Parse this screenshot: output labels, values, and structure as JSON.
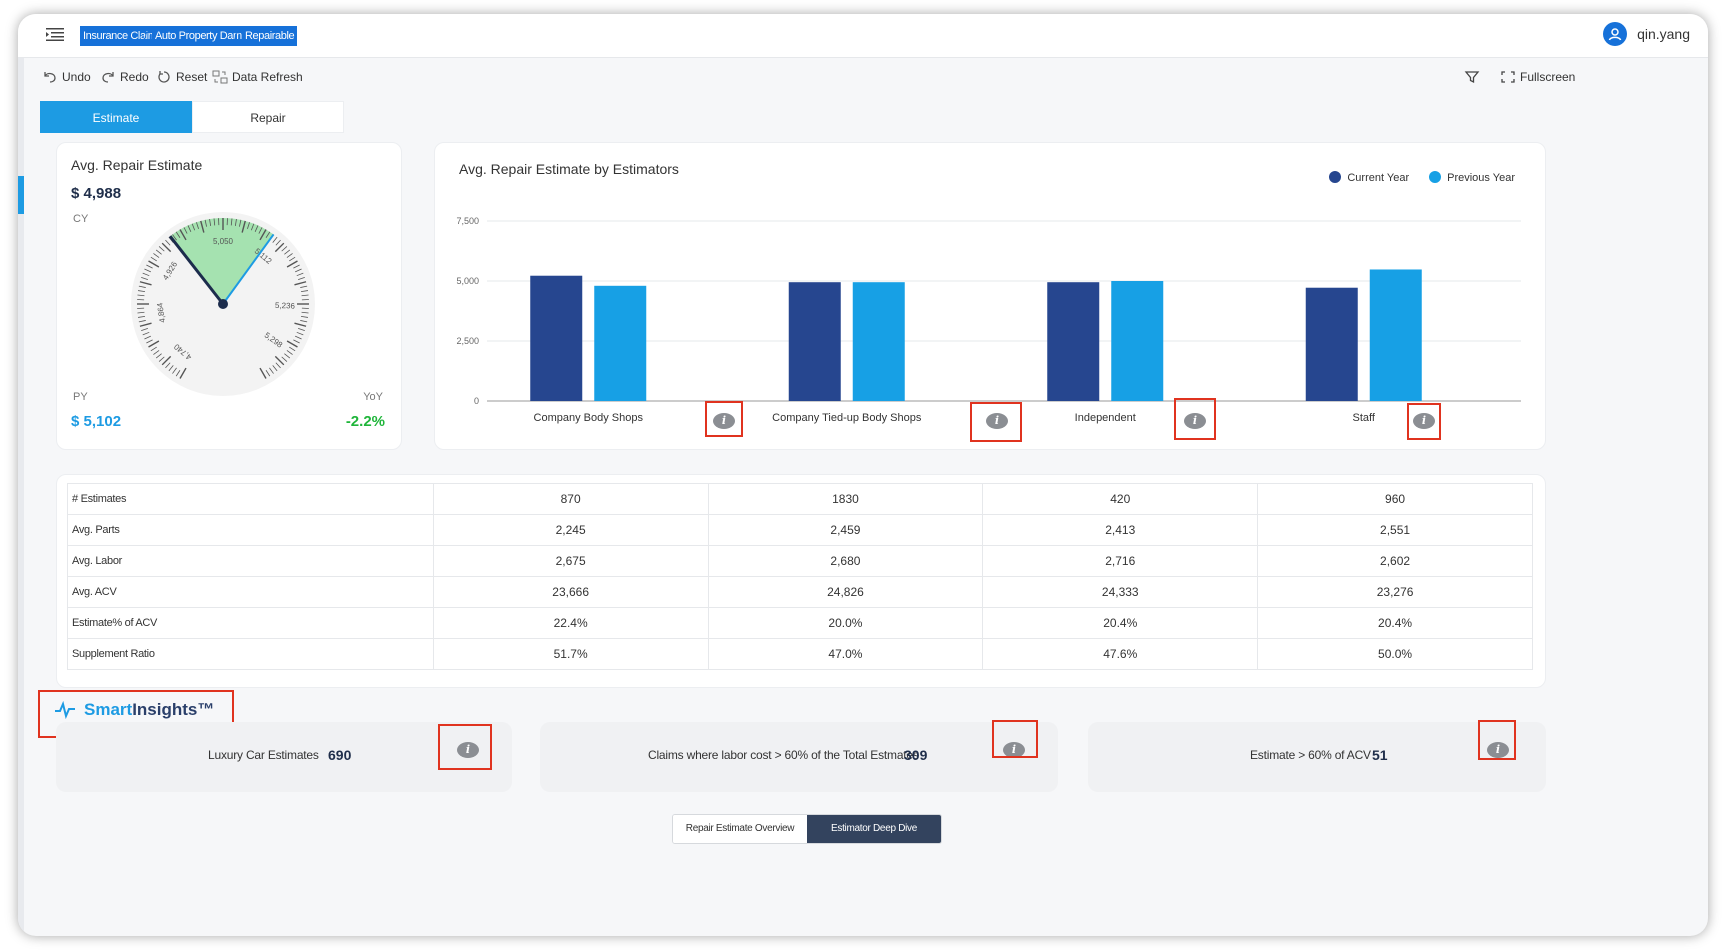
{
  "breadcrumb": [
    "Insurance Claims",
    "Auto Property Damage",
    "Repairable"
  ],
  "user": {
    "name": "qin.yang"
  },
  "toolbar": {
    "undo": "Undo",
    "redo": "Redo",
    "reset": "Reset",
    "refresh": "Data Refresh",
    "fullscreen": "Fullscreen"
  },
  "tabs": {
    "estimate": "Estimate",
    "repair": "Repair"
  },
  "gauge": {
    "title": "Avg. Repair Estimate",
    "cy_value": "$ 4,988",
    "cy_label": "CY",
    "py_label": "PY",
    "py_value": "$ 5,102",
    "yoy_label": "YoY",
    "yoy_value": "-2.2%",
    "tick_labels": [
      "4,740",
      "4,864",
      "4,926",
      "5,050",
      "5,112",
      "5,236",
      "5,298"
    ],
    "colors": {
      "band": "#a5e2b0",
      "cy_needle": "#1c2c4c",
      "py_needle": "#1d9be3"
    }
  },
  "chart_data": {
    "type": "bar",
    "title": "Avg. Repair Estimate by Estimators",
    "categories": [
      "Company Body Shops",
      "Company Tied-up Body Shops",
      "Independent",
      "Staff"
    ],
    "series": [
      {
        "name": "Current Year",
        "color": "#26468f",
        "values": [
          5220,
          4950,
          4950,
          4720
        ]
      },
      {
        "name": "Previous Year",
        "color": "#17a0e5",
        "values": [
          4800,
          4950,
          5000,
          5480
        ]
      }
    ],
    "ylim": [
      0,
      7500
    ],
    "yticks": [
      "0",
      "2,500",
      "5,000",
      "7,500"
    ],
    "grid": true,
    "legend": "top-right"
  },
  "table": {
    "rows": [
      {
        "label": "# Estimates",
        "values": [
          "870",
          "1830",
          "420",
          "960"
        ]
      },
      {
        "label": "Avg. Parts",
        "values": [
          "2,245",
          "2,459",
          "2,413",
          "2,551"
        ]
      },
      {
        "label": "Avg. Labor",
        "values": [
          "2,675",
          "2,680",
          "2,716",
          "2,602"
        ]
      },
      {
        "label": "Avg. ACV",
        "values": [
          "23,666",
          "24,826",
          "24,333",
          "23,276"
        ]
      },
      {
        "label": "Estimate% of ACV",
        "values": [
          "22.4%",
          "20.0%",
          "20.4%",
          "20.4%"
        ]
      },
      {
        "label": "Supplement Ratio",
        "values": [
          "51.7%",
          "47.0%",
          "47.6%",
          "50.0%"
        ]
      }
    ]
  },
  "smart_insights": {
    "brand_a": "Smart",
    "brand_b": "Insights™",
    "cards": [
      {
        "text": "Luxury Car Estimates",
        "value": "690"
      },
      {
        "text": "Claims where labor cost > 60% of the Total Estmates",
        "value": "309"
      },
      {
        "text": "Estimate > 60% of ACV",
        "value": "51"
      }
    ]
  },
  "bottom_tabs": {
    "overview": "Repair Estimate Overview",
    "deep_dive": "Estimator Deep Dive"
  },
  "info_glyph": "i"
}
